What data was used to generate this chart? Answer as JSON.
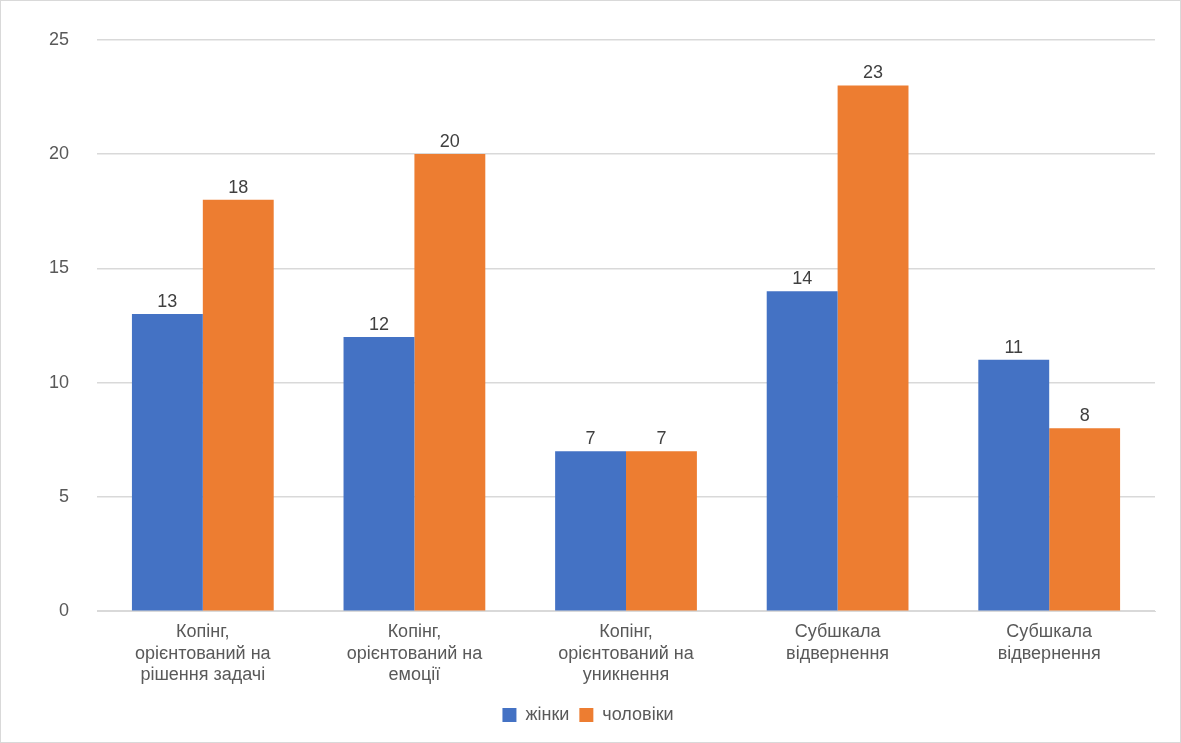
{
  "chart_data": {
    "type": "bar",
    "categories": [
      "Копінг, орієнтований на рішення задачі",
      "Копінг, орієнтований на емоції",
      "Копінг, орієнтований на уникнення",
      "Субшкала відвернення",
      "Субшкала відвернення"
    ],
    "series": [
      {
        "name": "жінки",
        "color": "#4472c4",
        "values": [
          13,
          12,
          7,
          14,
          11
        ]
      },
      {
        "name": "чоловіки",
        "color": "#ed7d31",
        "values": [
          18,
          20,
          7,
          23,
          8
        ]
      }
    ],
    "ylim": [
      0,
      25
    ],
    "yticks": [
      0,
      5,
      10,
      15,
      20,
      25
    ],
    "grid": "y",
    "legend": "bottom",
    "data_labels": true
  }
}
